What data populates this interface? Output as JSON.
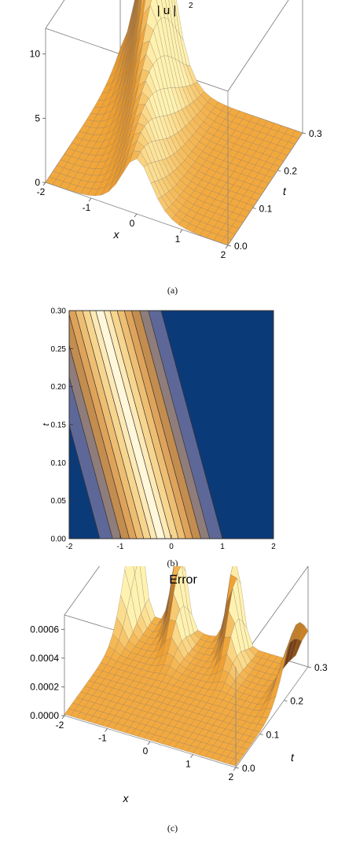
{
  "chart_data": [
    {
      "type": "surface",
      "panel_label": "(a)",
      "title": "| u | 2",
      "title_parts": {
        "main": "| u |",
        "superscript": "2"
      },
      "xlabel": "x",
      "ylabel": "t",
      "xlim": [
        -2,
        2
      ],
      "ylim": [
        0,
        0.3
      ],
      "zlim": [
        0,
        12
      ],
      "x_ticks": [
        "-2",
        "-1",
        "0",
        "1",
        "2"
      ],
      "y_ticks": [
        "0.0",
        "0.1",
        "0.2",
        "0.3"
      ],
      "z_ticks": [
        "0",
        "5",
        "10"
      ],
      "peak": {
        "x": -1.2,
        "t": 0.3,
        "value": 12
      },
      "ridge": {
        "x_at_t0": 0.0,
        "slope_dx_dt": -4.0,
        "width": 0.45
      },
      "colormap": [
        "#5a2a0c",
        "#f0a030",
        "#fff2b0"
      ]
    },
    {
      "type": "contour",
      "panel_label": "(b)",
      "xlabel": "x",
      "ylabel": "t",
      "xlim": [
        -2,
        2
      ],
      "ylim": [
        0,
        0.3
      ],
      "x_ticks": [
        "-2",
        "-1",
        "0",
        "1",
        "2"
      ],
      "y_ticks": [
        "0.00",
        "0.05",
        "0.10",
        "0.15",
        "0.20",
        "0.25",
        "0.30"
      ],
      "ridge": {
        "x_at_t0": -0.2,
        "slope_dx_dt": -4.0
      },
      "bands": [
        {
          "half_width": 1.2,
          "color": "#5e6898"
        },
        {
          "half_width": 0.95,
          "color": "#8e7d7a"
        },
        {
          "half_width": 0.78,
          "color": "#c28d4f"
        },
        {
          "half_width": 0.62,
          "color": "#dea35a"
        },
        {
          "half_width": 0.48,
          "color": "#edbe72"
        },
        {
          "half_width": 0.34,
          "color": "#f6d68f"
        },
        {
          "half_width": 0.2,
          "color": "#fde9b5"
        },
        {
          "half_width": 0.08,
          "color": "#fff7da"
        }
      ],
      "background_color": "#0b3a78"
    },
    {
      "type": "surface",
      "panel_label": "(c)",
      "title": "Error",
      "xlabel": "x",
      "ylabel": "t",
      "xlim": [
        -2,
        2
      ],
      "ylim": [
        0,
        0.3
      ],
      "zlim": [
        0,
        0.0007
      ],
      "x_ticks": [
        "-2",
        "-1",
        "0",
        "1",
        "2"
      ],
      "y_ticks": [
        "0.0",
        "0.1",
        "0.2",
        "0.3"
      ],
      "z_ticks": [
        "0.0000",
        "0.0002",
        "0.0004",
        "0.0006"
      ],
      "peaks_approx": [
        {
          "x": -2.0,
          "t": 0.3,
          "value": 0.0007
        },
        {
          "x": -1.0,
          "t": 0.3,
          "value": 0.0006
        },
        {
          "x": 0.3,
          "t": 0.3,
          "value": 0.0006
        },
        {
          "x": 2.0,
          "t": 0.25,
          "value": 0.0004
        }
      ],
      "colormap": [
        "#5a2a0c",
        "#f0a030",
        "#fff2b0"
      ]
    }
  ]
}
